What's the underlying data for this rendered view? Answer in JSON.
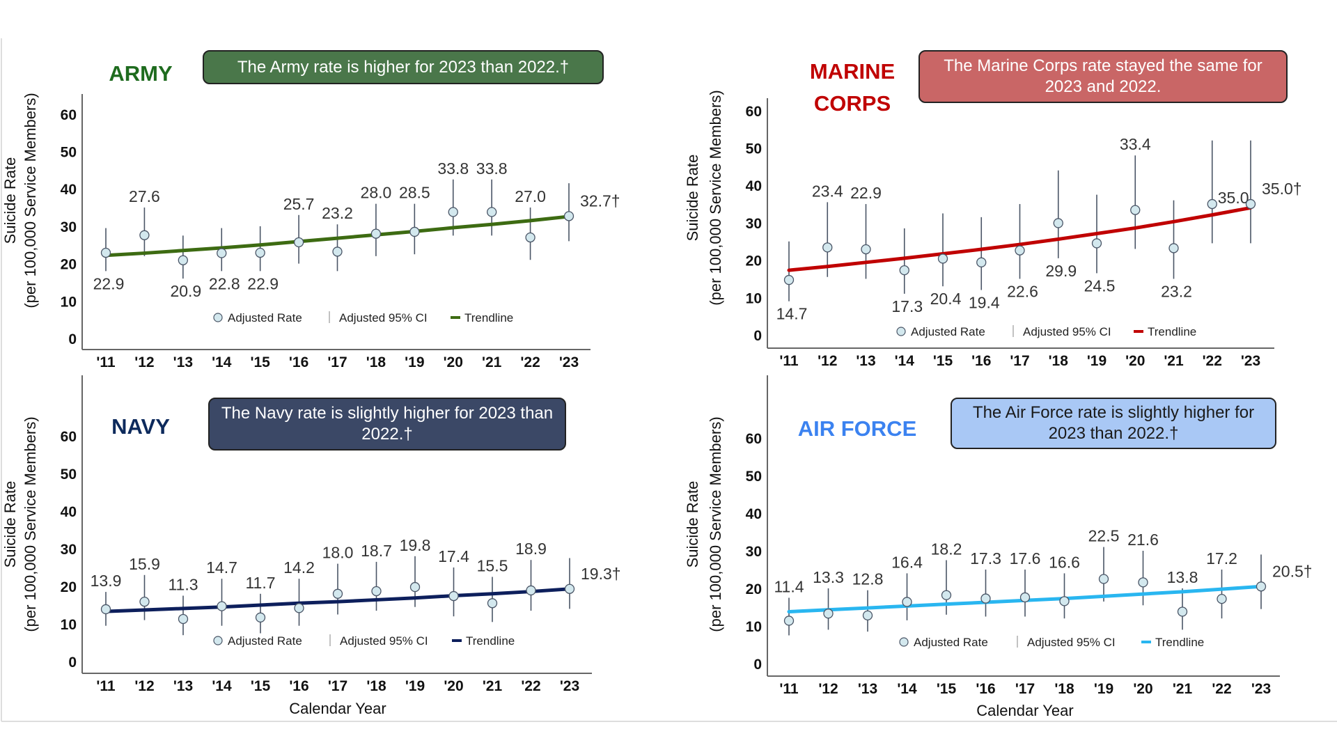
{
  "chart_data": [
    {
      "type": "line",
      "title": "ARMY",
      "callout": "The Army rate is higher for 2023 than 2022.†",
      "ylabel": [
        "Suicide Rate",
        "(per 100,000 Service Members)"
      ],
      "xlabel": "",
      "categories": [
        "'11",
        "'12",
        "'13",
        "'14",
        "'15",
        "'16",
        "'17",
        "'18",
        "'19",
        "'20",
        "'21",
        "'22",
        "'23"
      ],
      "ylim": [
        0,
        60
      ],
      "yticks": [
        0,
        10,
        20,
        30,
        40,
        50,
        60
      ],
      "adjusted_rate": [
        22.9,
        27.6,
        20.9,
        22.8,
        22.9,
        25.7,
        23.2,
        28.0,
        28.5,
        33.8,
        33.8,
        27.0,
        32.7
      ],
      "data_labels": [
        "22.9",
        "27.6",
        "20.9",
        "22.8",
        "22.9",
        "25.7",
        "23.2",
        "28.0",
        "28.5",
        "33.8",
        "33.8",
        "27.0",
        "32.7†"
      ],
      "ci_lower": [
        18,
        22,
        16,
        18,
        18,
        20,
        18,
        22,
        22.5,
        27.5,
        27.5,
        21,
        26
      ],
      "ci_upper": [
        29.5,
        35,
        27.5,
        29.5,
        30,
        33,
        30.5,
        36,
        36,
        42.5,
        42.5,
        35,
        41.5
      ],
      "trendline": [
        22.2,
        22.8,
        23.5,
        24.2,
        25.0,
        25.9,
        26.8,
        27.7,
        28.6,
        29.6,
        30.5,
        31.5,
        32.6
      ],
      "colors": {
        "title": "#1e6b1e",
        "callout_bg": "#4a774a",
        "callout_text": "#ffffff",
        "trend": "#3d6b12"
      }
    },
    {
      "type": "line",
      "title": "MARINE CORPS",
      "title_lines": [
        "MARINE",
        "CORPS"
      ],
      "callout": "The Marine Corps rate stayed the same for 2023  and 2022.",
      "ylabel": [
        "Suicide Rate",
        "(per 100,000 Service Members)"
      ],
      "xlabel": "",
      "categories": [
        "'11",
        "'12",
        "'13",
        "'14",
        "'15",
        "'16",
        "'17",
        "'18",
        "'19",
        "'20",
        "'21",
        "'22",
        "'23"
      ],
      "ylim": [
        0,
        60
      ],
      "yticks": [
        0,
        10,
        20,
        30,
        40,
        50,
        60
      ],
      "adjusted_rate": [
        14.7,
        23.4,
        22.9,
        17.3,
        20.4,
        19.4,
        22.6,
        29.9,
        24.5,
        33.4,
        23.2,
        35.0,
        35.0
      ],
      "data_labels": [
        "14.7",
        "23.4",
        "22.9",
        "17.3",
        "20.4",
        "19.4",
        "22.6",
        "29.9",
        "24.5",
        "33.4",
        "23.2",
        "35.0",
        "35.0†"
      ],
      "ci_lower": [
        9,
        15.5,
        15,
        11,
        13,
        12,
        15,
        20.5,
        16.5,
        23,
        15,
        24.5,
        24.5
      ],
      "ci_upper": [
        25,
        35.5,
        35,
        28.5,
        32.5,
        31.5,
        35,
        44,
        37.5,
        48,
        36,
        52,
        52
      ],
      "trendline": [
        17.3,
        18.3,
        19.4,
        20.5,
        21.7,
        22.9,
        24.2,
        25.6,
        27.1,
        28.6,
        30.3,
        32.1,
        34.0
      ],
      "colors": {
        "title": "#c00000",
        "callout_bg": "#c96666",
        "callout_text": "#ffffff",
        "trend": "#c00000"
      }
    },
    {
      "type": "line",
      "title": "NAVY",
      "callout": "The Navy rate is slightly higher for 2023 than 2022.†",
      "ylabel": [
        "Suicide Rate",
        "(per 100,000 Service Members)"
      ],
      "xlabel": "Calendar Year",
      "categories": [
        "'11",
        "'12",
        "'13",
        "'14",
        "'15",
        "'16",
        "'17",
        "'18",
        "'19",
        "'20",
        "'21",
        "'22",
        "'23"
      ],
      "ylim": [
        0,
        60
      ],
      "yticks": [
        0,
        10,
        20,
        30,
        40,
        50,
        60
      ],
      "adjusted_rate": [
        13.9,
        15.9,
        11.3,
        14.7,
        11.7,
        14.2,
        18.0,
        18.7,
        19.8,
        17.4,
        15.5,
        18.9,
        19.3
      ],
      "data_labels": [
        "13.9",
        "15.9",
        "11.3",
        "14.7",
        "11.7",
        "14.2",
        "18.0",
        "18.7",
        "19.8",
        "17.4",
        "15.5",
        "18.9",
        "19.3†"
      ],
      "ci_lower": [
        9.5,
        11,
        7,
        9.5,
        7.5,
        9.5,
        12.5,
        13.5,
        14.5,
        12,
        10.5,
        13.5,
        14
      ],
      "ci_upper": [
        18.5,
        23,
        17.5,
        22,
        18,
        22,
        26,
        26.5,
        28,
        25,
        22.5,
        27,
        27.5
      ],
      "trendline": [
        13.3,
        13.7,
        14.1,
        14.5,
        15.0,
        15.5,
        15.9,
        16.4,
        16.9,
        17.5,
        18.0,
        18.6,
        19.3
      ],
      "colors": {
        "title": "#0d2a5c",
        "callout_bg": "#3b4866",
        "callout_text": "#ffffff",
        "trend": "#0d1f5c"
      }
    },
    {
      "type": "line",
      "title": "AIR FORCE",
      "callout": "The Air Force rate is slightly higher for 2023 than 2022.†",
      "ylabel": [
        "Suicide Rate",
        "(per 100,000 Service Members)"
      ],
      "xlabel": "Calendar Year",
      "categories": [
        "'11",
        "'12",
        "'13",
        "'14",
        "'15",
        "'16",
        "'17",
        "'18",
        "'19",
        "'20",
        "'21",
        "'22",
        "'23"
      ],
      "ylim": [
        0,
        60
      ],
      "yticks": [
        0,
        10,
        20,
        30,
        40,
        50,
        60
      ],
      "adjusted_rate": [
        11.4,
        13.3,
        12.8,
        16.4,
        18.2,
        17.3,
        17.6,
        16.6,
        22.5,
        21.6,
        13.8,
        17.2,
        20.5
      ],
      "data_labels": [
        "11.4",
        "13.3",
        "12.8",
        "16.4",
        "18.2",
        "17.3",
        "17.6",
        "16.6",
        "22.5",
        "21.6",
        "13.8",
        "17.2",
        "20.5†"
      ],
      "ci_lower": [
        7.5,
        9,
        8.5,
        11.5,
        13,
        12.5,
        12.5,
        12,
        16.5,
        15.5,
        9,
        12,
        14.5
      ],
      "ci_upper": [
        17.5,
        20,
        19.5,
        24,
        27.5,
        25,
        25,
        24,
        31,
        30,
        20,
        25,
        29
      ],
      "trendline": [
        13.8,
        14.3,
        14.8,
        15.3,
        15.8,
        16.3,
        16.8,
        17.3,
        17.9,
        18.5,
        19.1,
        19.8,
        20.5
      ],
      "colors": {
        "title": "#3b82f0",
        "callout_bg": "#a9c8f5",
        "callout_text": "#1a1a1a",
        "trend": "#29b6f0"
      }
    }
  ],
  "legend": {
    "rate": "Adjusted Rate",
    "ci": "Adjusted 95% CI",
    "trend": "Trendline"
  },
  "colors": {
    "point_fill": "#d3e8ee",
    "point_stroke": "#4a5566",
    "ci": "#4a5566",
    "axis": "#666666"
  }
}
